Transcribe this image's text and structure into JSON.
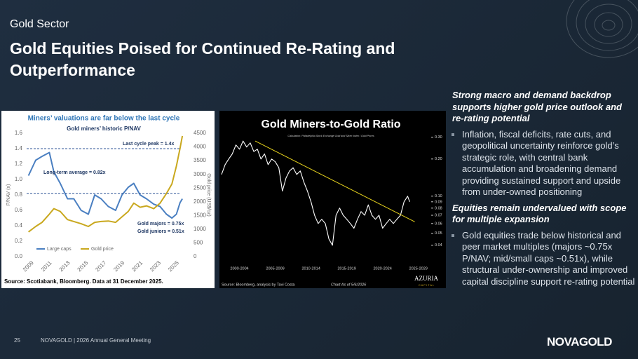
{
  "header": {
    "section": "Gold Sector",
    "title": "Gold Equities Poised for Continued Re-Rating and Outperformance"
  },
  "chart_data": [
    {
      "type": "line",
      "title": "Miners’ valuations are far below the last cycle",
      "subtitle": "Gold miners’ historic P/NAV",
      "ylabel": "P/NAV (x)",
      "y2label": "Gold price (US$/oz)",
      "x": [
        2009,
        2009.8,
        2010.5,
        2011.3,
        2011.8,
        2012.5,
        2013.3,
        2014,
        2014.8,
        2015.6,
        2016.3,
        2017,
        2017.8,
        2018.6,
        2019.3,
        2020,
        2020.6,
        2021.3,
        2022,
        2022.8,
        2023.5,
        2024.2,
        2024.8,
        2025.3,
        2025.7,
        2025.95
      ],
      "xlim": [
        2008.8,
        2026.1
      ],
      "xticks": [
        2009,
        2011,
        2013,
        2015,
        2017,
        2019,
        2021,
        2023,
        2025
      ],
      "ylim": [
        0,
        1.6
      ],
      "yticks": [
        {
          "value": 0,
          "label": "0.0"
        },
        0.2,
        0.4,
        0.6,
        0.8,
        {
          "value": 1,
          "label": "1.0"
        },
        1.2,
        1.4,
        1.6
      ],
      "y2lim": [
        0,
        4500
      ],
      "y2ticks": [
        0,
        500,
        1000,
        1500,
        2000,
        2500,
        3000,
        3500,
        4000,
        4500
      ],
      "series": [
        {
          "name": "Large caps",
          "color": "#4a7fc1",
          "values": [
            1.05,
            1.25,
            1.3,
            1.35,
            1.1,
            0.95,
            0.75,
            0.75,
            0.6,
            0.55,
            0.8,
            0.75,
            0.65,
            0.6,
            0.8,
            0.9,
            0.95,
            0.8,
            0.75,
            0.68,
            0.65,
            0.55,
            0.5,
            0.55,
            0.7,
            0.75
          ]
        },
        {
          "name": "Gold price",
          "color": "#c9a81e",
          "axis": "y2",
          "values": [
            900,
            1100,
            1250,
            1550,
            1750,
            1650,
            1350,
            1280,
            1200,
            1100,
            1250,
            1280,
            1300,
            1250,
            1450,
            1650,
            1950,
            1800,
            1850,
            1750,
            1950,
            2300,
            2650,
            3300,
            3950,
            4400
          ]
        }
      ],
      "annotations": [
        {
          "text": "Last cycle peak = 1.4x",
          "value": 1.4
        },
        {
          "text": "Long-term average = 0.82x",
          "value": 0.82
        },
        {
          "text": "Gold majors = 0.75x"
        },
        {
          "text": "Gold juniors = 0.51x"
        }
      ],
      "source": "Source: Scotiabank, Bloomberg. Data at 31 December 2025."
    },
    {
      "type": "line",
      "title": "Gold Miners-to-Gold Ratio",
      "subtitle": "Calculation: Philadelphia Stock Exchange Gold and Silver Index / Gold Prices",
      "log_scale": true,
      "x": [
        2000,
        2000.5,
        2001,
        2001.5,
        2002,
        2002.5,
        2003,
        2003.5,
        2004,
        2004.5,
        2005,
        2005.5,
        2006,
        2006.5,
        2007,
        2007.5,
        2008,
        2008.5,
        2009,
        2009.5,
        2010,
        2010.5,
        2011,
        2011.5,
        2012,
        2012.5,
        2013,
        2013.5,
        2014,
        2014.5,
        2015,
        2015.5,
        2016,
        2016.5,
        2017,
        2017.5,
        2018,
        2018.5,
        2019,
        2019.5,
        2020,
        2020.5,
        2021,
        2021.5,
        2022,
        2022.5,
        2023,
        2023.5,
        2024,
        2024.5,
        2025,
        2025.5,
        2026,
        2026.3
      ],
      "xlim": [
        1999.8,
        2029
      ],
      "xticks": [
        {
          "value": 2002.5,
          "label": "2000-2004"
        },
        {
          "value": 2007.5,
          "label": "2005-2009"
        },
        {
          "value": 2012.5,
          "label": "2010-2014"
        },
        {
          "value": 2017.5,
          "label": "2015-2019"
        },
        {
          "value": 2022.5,
          "label": "2020-2024"
        },
        {
          "value": 2027.5,
          "label": "2025-2029"
        }
      ],
      "ylim": [
        0.035,
        0.35
      ],
      "yticks": [
        {
          "value": 0.3,
          "label": "0.30"
        },
        {
          "value": 0.2,
          "label": "0.20"
        },
        {
          "value": 0.1,
          "label": "0.10"
        },
        0.09,
        0.08,
        0.07,
        0.06,
        0.05,
        0.04
      ],
      "series": [
        {
          "color": "#ffffff",
          "values": [
            0.15,
            0.18,
            0.2,
            0.22,
            0.26,
            0.24,
            0.28,
            0.25,
            0.27,
            0.23,
            0.24,
            0.2,
            0.22,
            0.18,
            0.2,
            0.19,
            0.17,
            0.11,
            0.14,
            0.16,
            0.17,
            0.15,
            0.16,
            0.13,
            0.11,
            0.09,
            0.07,
            0.06,
            0.065,
            0.06,
            0.045,
            0.04,
            0.07,
            0.08,
            0.07,
            0.065,
            0.06,
            0.055,
            0.065,
            0.075,
            0.07,
            0.085,
            0.07,
            0.065,
            0.07,
            0.055,
            0.06,
            0.065,
            0.06,
            0.065,
            0.07,
            0.09,
            0.1,
            0.09
          ]
        }
      ],
      "trendline": {
        "color": "#e6d21c",
        "x": [
          2004.7,
          2027
        ],
        "values": [
          0.28,
          0.062
        ]
      },
      "date_note": "Chart As of 5/6/2026",
      "source": "Source: Bloomberg, analysis by Tavi Costa",
      "logo": [
        "AZURIA",
        "C A P I T A L"
      ]
    }
  ],
  "sections": [
    {
      "heading": "Strong macro and demand backdrop supports higher gold price outlook and re-rating potential",
      "bullets": [
        "Inflation, fiscal deficits, rate cuts, and geopolitical uncertainty reinforce gold’s strategic role, with central bank accumulation and broadening demand providing sustained support and upside from under-owned positioning"
      ]
    },
    {
      "heading": "Equities remain undervalued with scope for multiple expansion",
      "bullets": [
        "Gold equities trade below historical and peer market multiples (majors ~0.75x P/NAV; mid/small caps ~0.51x), while structural under-ownership and improved capital discipline support re-rating potential"
      ]
    }
  ],
  "footer": {
    "page": "25",
    "text": "NOVAGOLD | 2026 Annual General Meeting",
    "logo": "NOVAGOLD"
  }
}
